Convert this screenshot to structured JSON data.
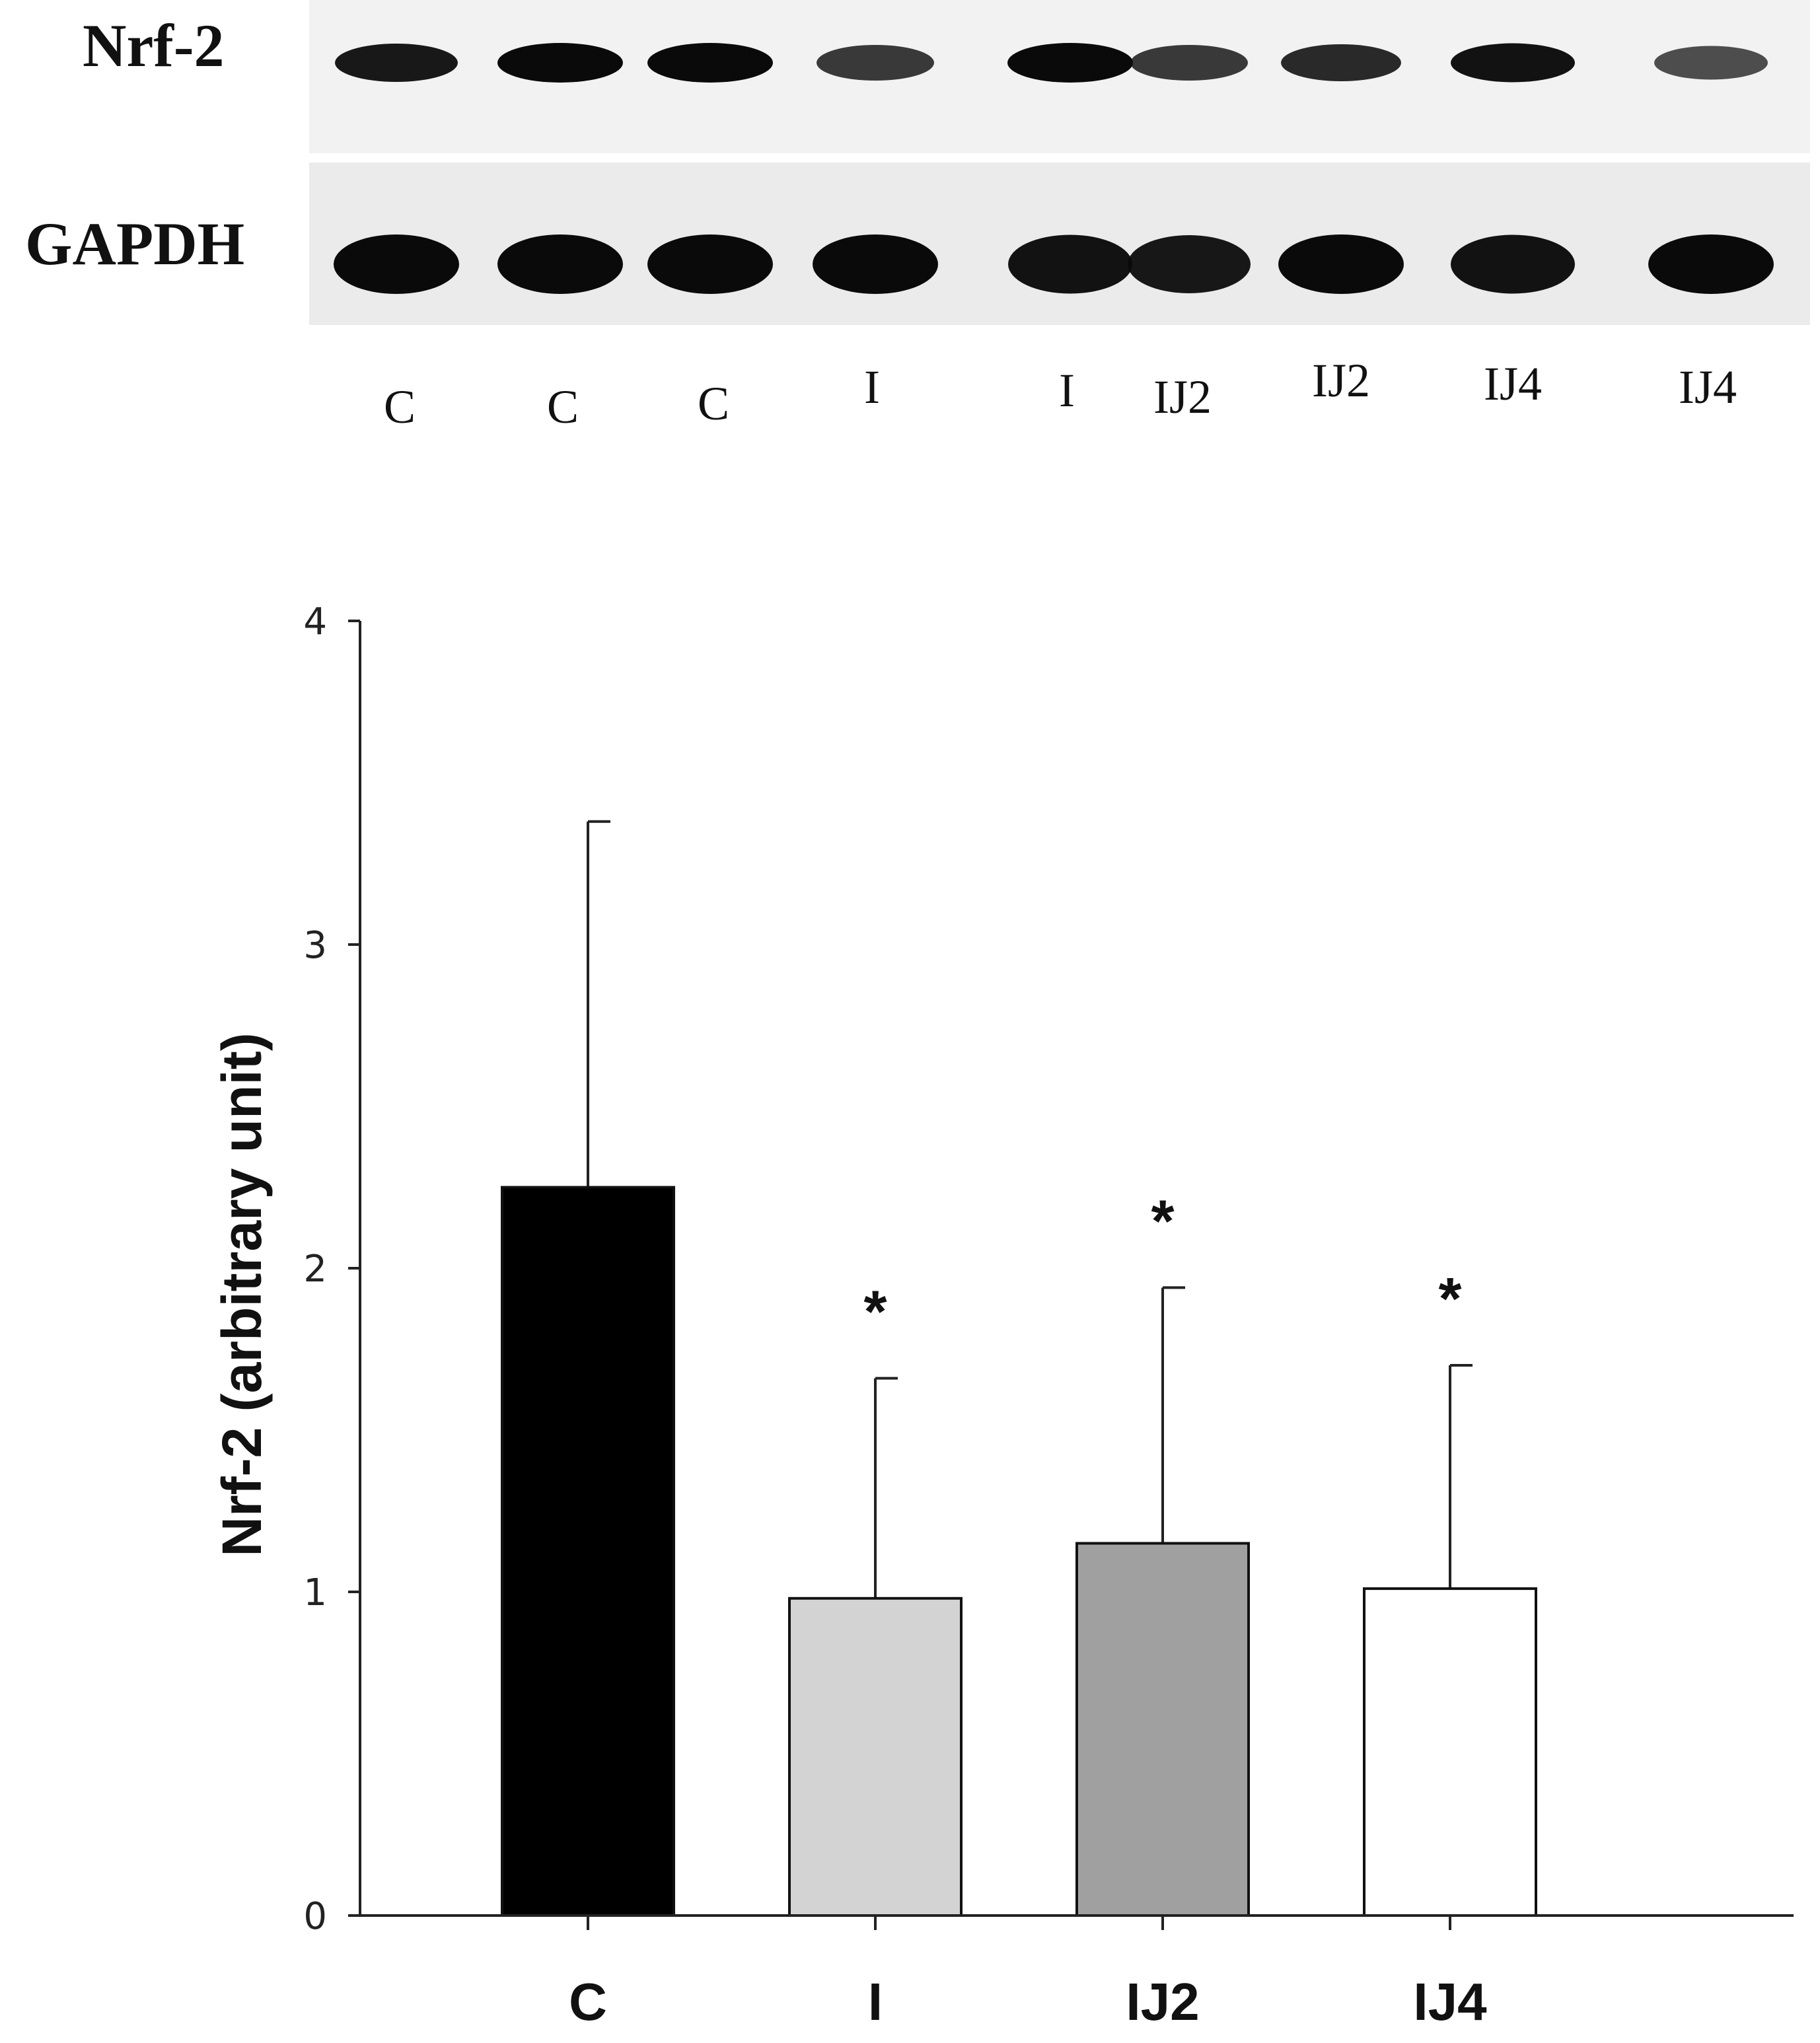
{
  "blot": {
    "rows": [
      {
        "label": "Nrf-2",
        "intensity": [
          0.9,
          1.0,
          1.0,
          0.7,
          1.0,
          0.7,
          0.8,
          0.95,
          0.55
        ]
      },
      {
        "label": "GAPDH",
        "intensity": [
          1.0,
          1.0,
          1.0,
          1.0,
          0.95,
          0.9,
          1.0,
          0.95,
          1.0
        ]
      }
    ],
    "lanes": [
      "C",
      "C",
      "C",
      "I",
      "I",
      "IJ2",
      "IJ2",
      "IJ4",
      "IJ4"
    ]
  },
  "chart_data": {
    "type": "bar",
    "categories": [
      "C",
      "I",
      "IJ2",
      "IJ4"
    ],
    "values": [
      2.25,
      0.98,
      1.15,
      1.01
    ],
    "error_upper": [
      3.38,
      1.66,
      1.94,
      1.7
    ],
    "significance": [
      "",
      "*",
      "*",
      "*"
    ],
    "colors": [
      "#000000",
      "#d3d3d3",
      "#a0a0a0",
      "#ffffff"
    ],
    "ylabel": "Nrf-2 (arbitrary unit)",
    "xlabel": "",
    "ylim": [
      0,
      4
    ],
    "yticks": [
      0,
      1,
      2,
      3,
      4
    ],
    "grid": false,
    "legend": "none"
  }
}
